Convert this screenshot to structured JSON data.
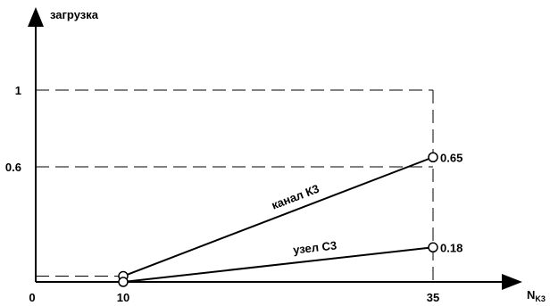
{
  "chart_data": {
    "type": "line",
    "title": "",
    "ylabel": "загрузка",
    "xlabel": "N",
    "xlabel_sub": "K3",
    "xlim": [
      0,
      35
    ],
    "ylim": [
      0,
      1
    ],
    "x_ticks": [
      {
        "value": 0,
        "label": "0"
      },
      {
        "value": 10,
        "label": "10"
      },
      {
        "value": 35,
        "label": "35"
      }
    ],
    "y_ticks": [
      {
        "value": 1,
        "label": "1"
      },
      {
        "value": 0.6,
        "label": "0.6"
      }
    ],
    "grid": false,
    "series": [
      {
        "name": "канал К3",
        "points": [
          {
            "x": 10,
            "y": 0.03
          },
          {
            "x": 35,
            "y": 0.65,
            "label": "0.65"
          }
        ]
      },
      {
        "name": "узел С3",
        "points": [
          {
            "x": 10,
            "y": 0.0
          },
          {
            "x": 35,
            "y": 0.18,
            "label": "0.18"
          }
        ]
      }
    ]
  }
}
